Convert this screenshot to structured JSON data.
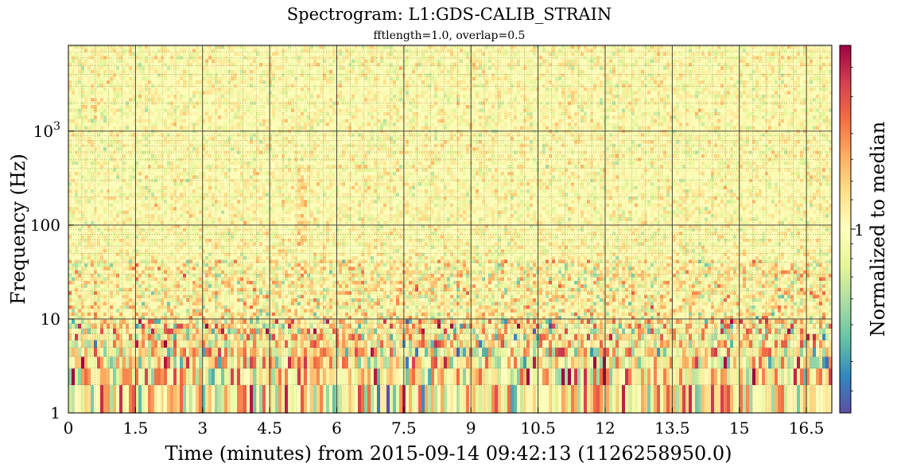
{
  "chart_data": {
    "type": "heatmap",
    "title": "Spectrogram: L1:GDS-CALIB_STRAIN",
    "subtitle": "fftlength=1.0, overlap=0.5",
    "xlabel": "Time (minutes) from 2015-09-14 09:42:13 (1126258950.0)",
    "ylabel": "Frequency (Hz)",
    "colorbar_label": "Normalized to median",
    "xlim": [
      0,
      17.067
    ],
    "ylim": [
      1,
      8192
    ],
    "yscale": "log",
    "colorbar_scale": "log",
    "x_ticks": [
      0,
      1.5,
      3,
      4.5,
      6,
      7.5,
      9,
      10.5,
      12,
      13.5,
      15,
      16.5
    ],
    "x_tick_labels": [
      "0",
      "1.5",
      "3",
      "4.5",
      "6",
      "7.5",
      "9",
      "10.5",
      "12",
      "13.5",
      "15",
      "16.5"
    ],
    "y_ticks": [
      1,
      10,
      100,
      1000
    ],
    "y_tick_labels": [
      "1",
      "10",
      "100",
      "10^3"
    ],
    "colorbar_ticks": [
      1
    ],
    "colorbar_tick_labels": [
      "1"
    ],
    "colormap": "Spectral_r",
    "colormap_colors": [
      "#5e4fa2",
      "#3288bd",
      "#66c2a5",
      "#abdda4",
      "#e6f598",
      "#ffffbf",
      "#fee08b",
      "#fdae61",
      "#f46d43",
      "#d53e4f",
      "#9e0142"
    ],
    "grid": true
  }
}
